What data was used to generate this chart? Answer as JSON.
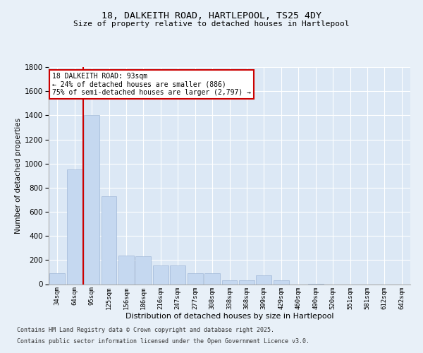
{
  "title1": "18, DALKEITH ROAD, HARTLEPOOL, TS25 4DY",
  "title2": "Size of property relative to detached houses in Hartlepool",
  "xlabel": "Distribution of detached houses by size in Hartlepool",
  "ylabel": "Number of detached properties",
  "categories": [
    "34sqm",
    "64sqm",
    "95sqm",
    "125sqm",
    "156sqm",
    "186sqm",
    "216sqm",
    "247sqm",
    "277sqm",
    "308sqm",
    "338sqm",
    "368sqm",
    "399sqm",
    "429sqm",
    "460sqm",
    "490sqm",
    "520sqm",
    "551sqm",
    "581sqm",
    "612sqm",
    "642sqm"
  ],
  "values": [
    90,
    950,
    1400,
    730,
    235,
    230,
    155,
    155,
    90,
    90,
    35,
    30,
    75,
    35,
    0,
    5,
    0,
    0,
    0,
    0,
    0
  ],
  "bar_color": "#c5d8f0",
  "bar_edge_color": "#a0b8d8",
  "vline_x": 1.5,
  "vline_color": "#cc0000",
  "annotation_text": "18 DALKEITH ROAD: 93sqm\n← 24% of detached houses are smaller (886)\n75% of semi-detached houses are larger (2,797) →",
  "annotation_box_color": "#ffffff",
  "annotation_box_edge": "#cc0000",
  "ylim": [
    0,
    1800
  ],
  "yticks": [
    0,
    200,
    400,
    600,
    800,
    1000,
    1200,
    1400,
    1600,
    1800
  ],
  "footer1": "Contains HM Land Registry data © Crown copyright and database right 2025.",
  "footer2": "Contains public sector information licensed under the Open Government Licence v3.0.",
  "bg_color": "#e8f0f8",
  "plot_bg": "#dce8f5"
}
